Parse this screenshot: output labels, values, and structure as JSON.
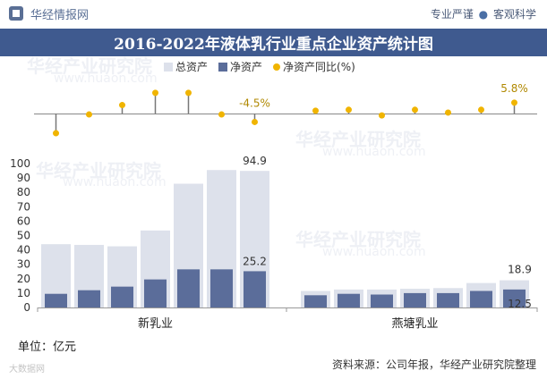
{
  "header": {
    "brand": "华经情报网",
    "slogan_left": "专业严谨",
    "slogan_sep": "●",
    "slogan_right": "客观科学"
  },
  "title": "2016-2022年液体乳行业重点企业资产统计图",
  "legend": {
    "total": "总资产",
    "net": "净资产",
    "ratio": "净资产同比(%)"
  },
  "colors": {
    "total": "#dde1eb",
    "net": "#5b6d9a",
    "ratio": "#f0b400",
    "title_bg": "#3f5a8f"
  },
  "chart_data": {
    "type": "bar",
    "title": "2016-2022年液体乳行业重点企业资产统计图",
    "ylabel": "亿元",
    "ylim": [
      0,
      100
    ],
    "yticks": [
      "0",
      "10",
      "20",
      "30",
      "40",
      "50",
      "60",
      "70",
      "80",
      "90",
      "100"
    ],
    "groups": [
      {
        "name": "新乳业",
        "total": [
          44,
          43.5,
          42.5,
          53.5,
          86,
          95.5,
          94.9
        ],
        "net": [
          9.5,
          12,
          14.5,
          19.5,
          26.5,
          26.5,
          25.2
        ],
        "ratio": [
          -10.5,
          -0.5,
          4.5,
          11,
          11,
          -0.5,
          -4.5
        ]
      },
      {
        "name": "燕塘乳业",
        "total": [
          11.5,
          12.5,
          12.5,
          13,
          13.5,
          17,
          18.9
        ],
        "net": [
          8.5,
          9.5,
          9,
          10,
          10,
          11.5,
          12.5
        ],
        "ratio": [
          1.5,
          2,
          -1,
          2,
          0.5,
          2,
          5.8
        ]
      }
    ],
    "labels": {
      "xinru_total_last": "94.9",
      "xinru_net_last": "25.2",
      "xinru_ratio_last": "-4.5%",
      "yantang_total_last": "18.9",
      "yantang_net_last": "12.5",
      "yantang_ratio_last": "5.8%"
    }
  },
  "footer": {
    "unit": "单位：亿元",
    "source": "资料来源：公司年报，华经产业研究院整理",
    "logo_text": "大数据网",
    "watermark_brand": "华经产业研究院",
    "watermark_url": "www.huaon.com"
  }
}
